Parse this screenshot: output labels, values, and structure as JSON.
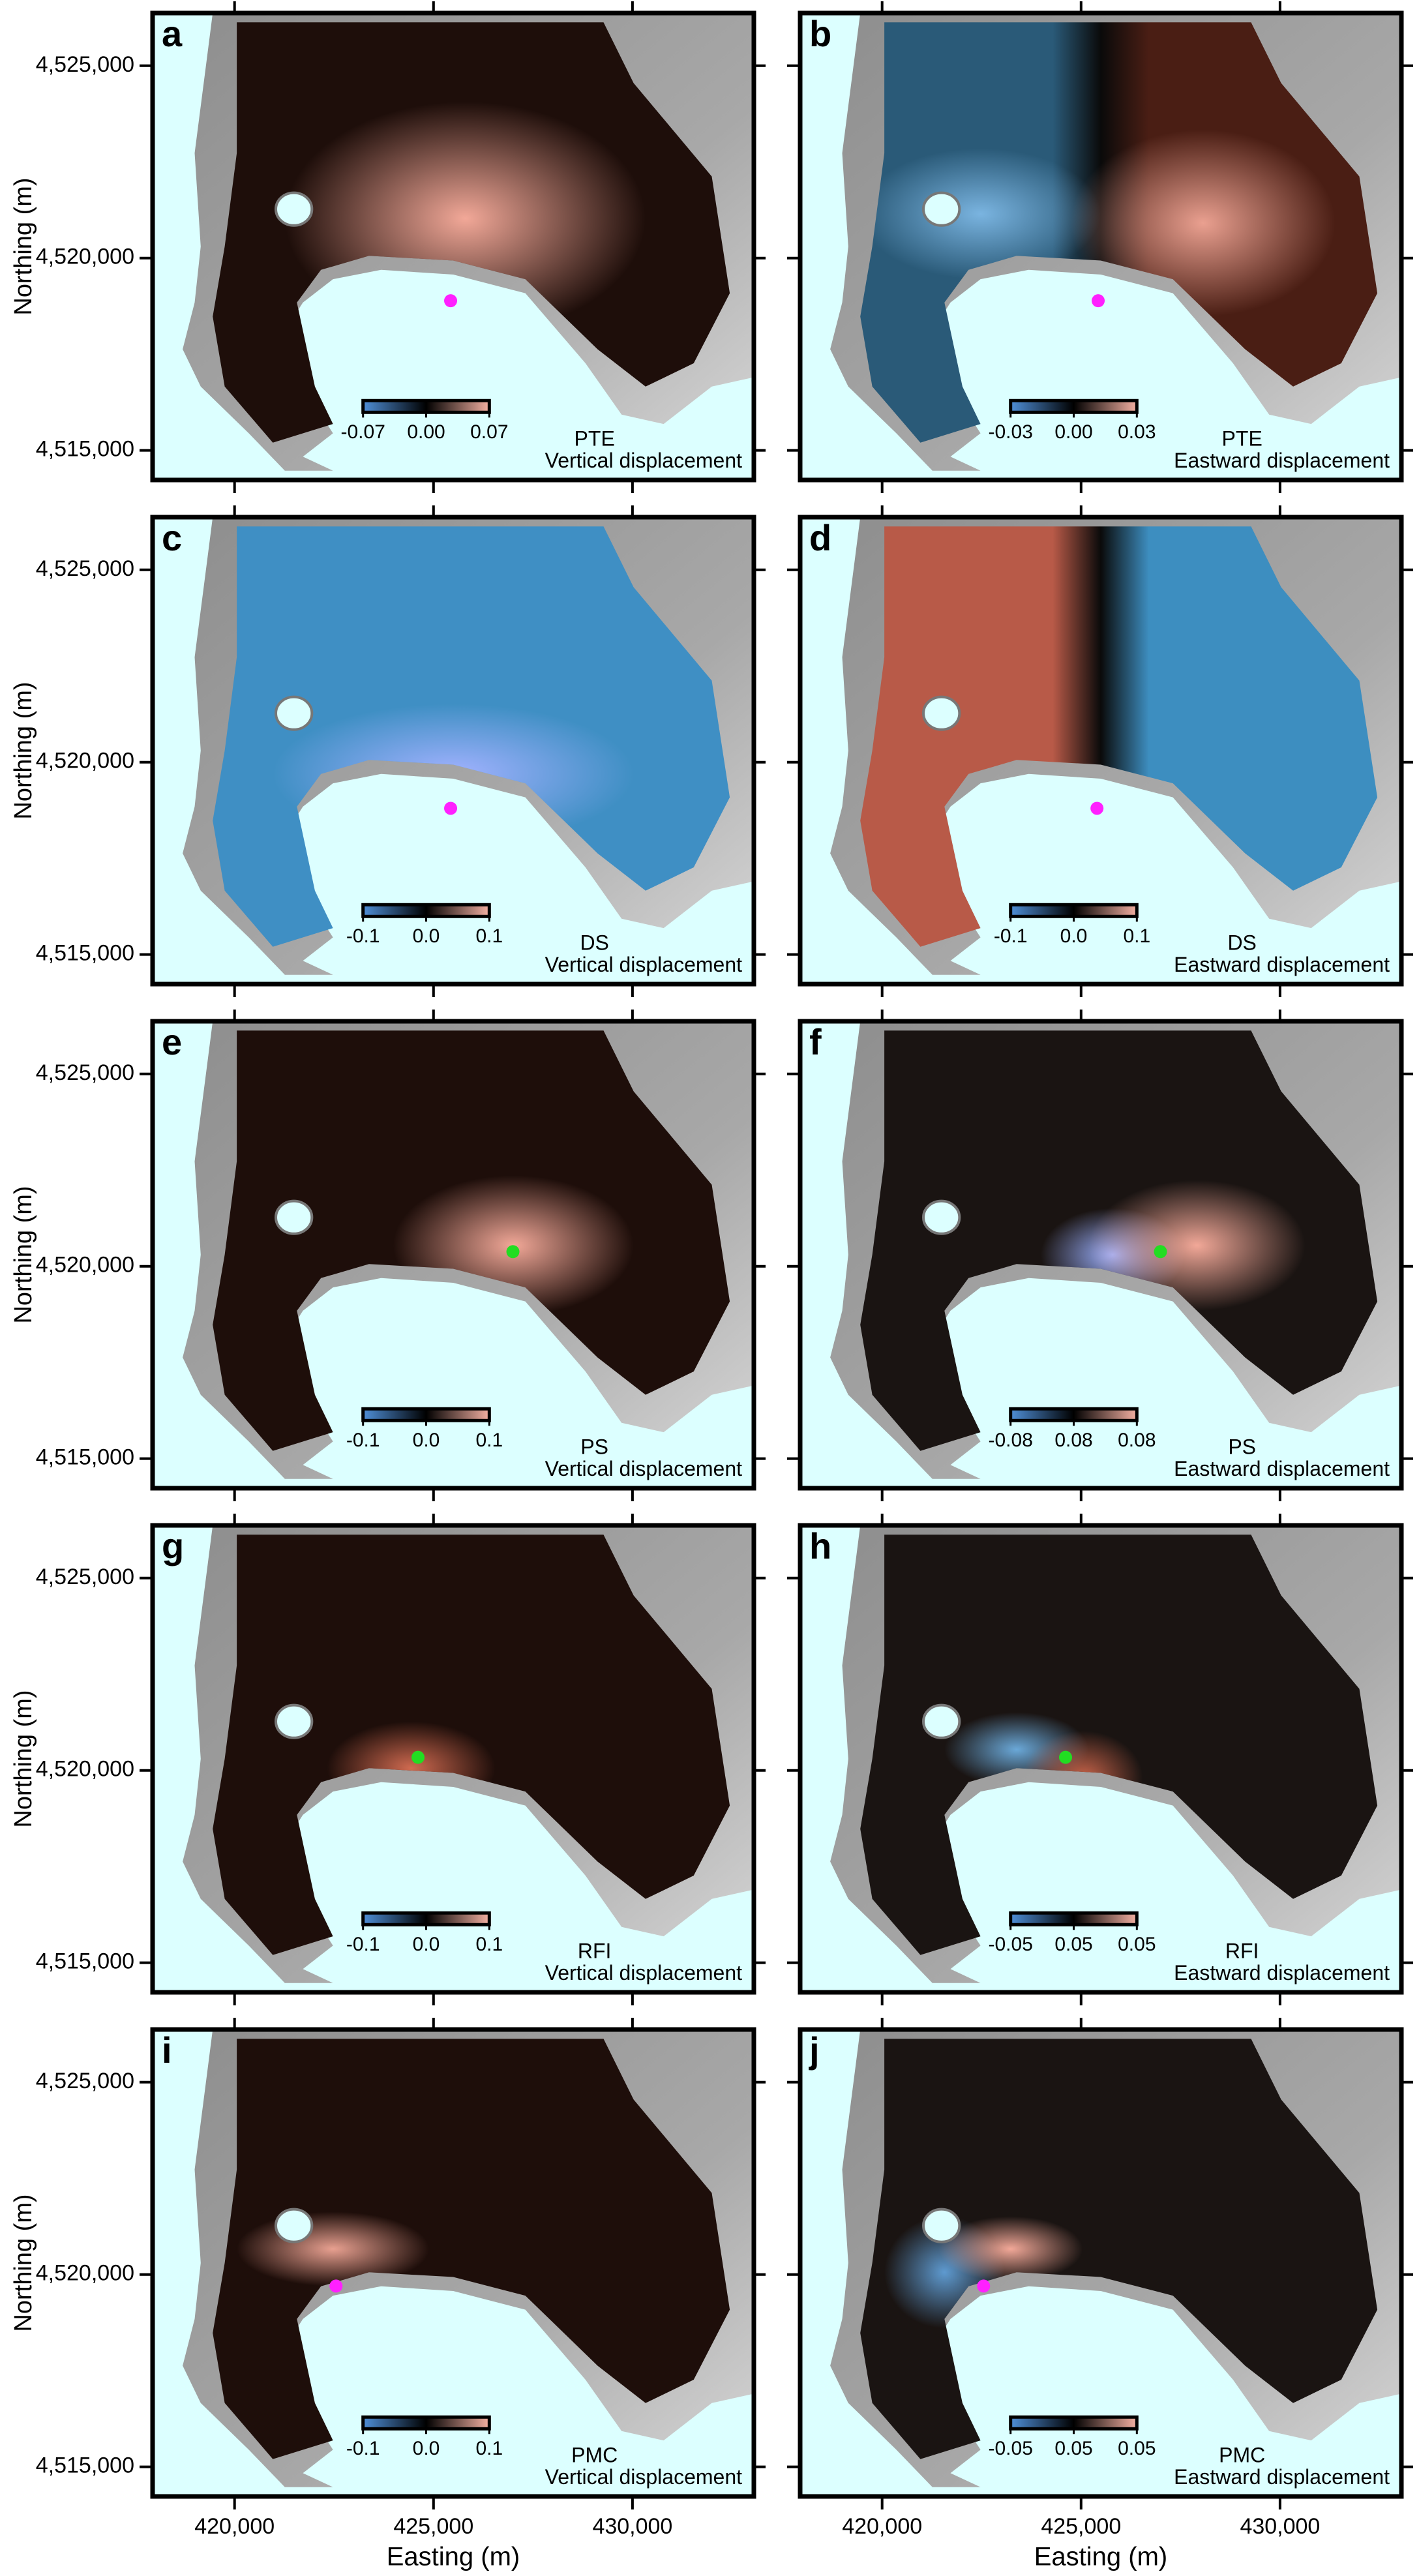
{
  "chart_data": [
    {
      "type": "map",
      "panel": "a",
      "model": "PTE",
      "component": "Vertical displacement",
      "ylabel": "Northing (m)",
      "xlim": [
        417940,
        433050
      ],
      "ylim": [
        4514230,
        4526370
      ],
      "xticks": [
        420000,
        425000,
        430000
      ],
      "yticks": [
        {
          "value": 4515000,
          "label": "4,515,000"
        },
        {
          "value": 4520000,
          "label": "4,520,000"
        },
        {
          "value": 4525000,
          "label": "4,525,000"
        }
      ],
      "colorbar_labels": [
        "-0.07",
        "0.00",
        "0.07"
      ],
      "colorbar_colors": [
        "#4f8fd8",
        "#000000",
        "#f4b0a2"
      ],
      "source": {
        "easting": 425430,
        "northing": 4518890,
        "color": "#ff20ff"
      }
    },
    {
      "type": "map",
      "panel": "b",
      "model": "PTE",
      "component": "Eastward displacement",
      "xlim": [
        417940,
        433050
      ],
      "ylim": [
        4514230,
        4526370
      ],
      "xticks": [
        420000,
        425000,
        430000
      ],
      "yticks": [
        4515000,
        4520000,
        4525000
      ],
      "colorbar_labels": [
        "-0.03",
        "0.00",
        "0.03"
      ],
      "colorbar_colors": [
        "#4f8fd8",
        "#000000",
        "#f4b0a2"
      ],
      "source": {
        "easting": 425430,
        "northing": 4518890,
        "color": "#ff20ff"
      }
    },
    {
      "type": "map",
      "panel": "c",
      "model": "DS",
      "component": "Vertical displacement",
      "ylabel": "Northing (m)",
      "xlim": [
        417940,
        433050
      ],
      "ylim": [
        4514230,
        4526370
      ],
      "xticks": [
        420000,
        425000,
        430000
      ],
      "yticks": [
        {
          "value": 4515000,
          "label": "4,515,000"
        },
        {
          "value": 4520000,
          "label": "4,520,000"
        },
        {
          "value": 4525000,
          "label": "4,525,000"
        }
      ],
      "colorbar_labels": [
        "-0.1",
        "0.0",
        "0.1"
      ],
      "colorbar_colors": [
        "#4f8fd8",
        "#000000",
        "#f4b0a2"
      ],
      "source": {
        "easting": 425430,
        "northing": 4518800,
        "color": "#ff20ff"
      }
    },
    {
      "type": "map",
      "panel": "d",
      "model": "DS",
      "component": "Eastward displacement",
      "xlim": [
        417940,
        433050
      ],
      "ylim": [
        4514230,
        4526370
      ],
      "xticks": [
        420000,
        425000,
        430000
      ],
      "yticks": [
        4515000,
        4520000,
        4525000
      ],
      "colorbar_labels": [
        "-0.1",
        "0.0",
        "0.1"
      ],
      "colorbar_colors": [
        "#4f8fd8",
        "#000000",
        "#f4b0a2"
      ],
      "source": {
        "easting": 425400,
        "northing": 4518800,
        "color": "#ff20ff"
      }
    },
    {
      "type": "map",
      "panel": "e",
      "model": "PS",
      "component": "Vertical displacement",
      "ylabel": "Northing (m)",
      "xlim": [
        417940,
        433050
      ],
      "ylim": [
        4514230,
        4526370
      ],
      "xticks": [
        420000,
        425000,
        430000
      ],
      "yticks": [
        {
          "value": 4515000,
          "label": "4,515,000"
        },
        {
          "value": 4520000,
          "label": "4,520,000"
        },
        {
          "value": 4525000,
          "label": "4,525,000"
        }
      ],
      "colorbar_labels": [
        "-0.1",
        "0.0",
        "0.1"
      ],
      "colorbar_colors": [
        "#4f8fd8",
        "#000000",
        "#f4b0a2"
      ],
      "source": {
        "easting": 426995,
        "northing": 4520380,
        "color": "#22dd22"
      }
    },
    {
      "type": "map",
      "panel": "f",
      "model": "PS",
      "component": "Eastward displacement",
      "xlim": [
        417940,
        433050
      ],
      "ylim": [
        4514230,
        4526370
      ],
      "xticks": [
        420000,
        425000,
        430000
      ],
      "yticks": [
        4515000,
        4520000,
        4525000
      ],
      "colorbar_labels": [
        "-0.08",
        "0.08",
        "0.08"
      ],
      "colorbar_colors": [
        "#4f8fd8",
        "#000000",
        "#f4b0a2"
      ],
      "source": {
        "easting": 426995,
        "northing": 4520380,
        "color": "#22dd22"
      }
    },
    {
      "type": "map",
      "panel": "g",
      "model": "RFI",
      "component": "Vertical displacement",
      "ylabel": "Northing (m)",
      "xlim": [
        417940,
        433050
      ],
      "ylim": [
        4514230,
        4526370
      ],
      "xticks": [
        420000,
        425000,
        430000
      ],
      "yticks": [
        {
          "value": 4515000,
          "label": "4,515,000"
        },
        {
          "value": 4520000,
          "label": "4,520,000"
        },
        {
          "value": 4525000,
          "label": "4,525,000"
        }
      ],
      "colorbar_labels": [
        "-0.1",
        "0.0",
        "0.1"
      ],
      "colorbar_colors": [
        "#4f8fd8",
        "#000000",
        "#f4b0a2"
      ],
      "source": {
        "easting": 424610,
        "northing": 4520340,
        "color": "#22dd22"
      }
    },
    {
      "type": "map",
      "panel": "h",
      "model": "RFI",
      "component": "Eastward displacement",
      "xlim": [
        417940,
        433050
      ],
      "ylim": [
        4514230,
        4526370
      ],
      "xticks": [
        420000,
        425000,
        430000
      ],
      "yticks": [
        4515000,
        4520000,
        4525000
      ],
      "colorbar_labels": [
        "-0.05",
        "0.05",
        "0.05"
      ],
      "colorbar_colors": [
        "#4f8fd8",
        "#000000",
        "#f4b0a2"
      ],
      "source": {
        "easting": 424610,
        "northing": 4520340,
        "color": "#22dd22"
      }
    },
    {
      "type": "map",
      "panel": "i",
      "model": "PMC",
      "component": "Vertical displacement",
      "ylabel": "Northing (m)",
      "xlabel": "Easting (m)",
      "xlim": [
        417940,
        433050
      ],
      "ylim": [
        4514230,
        4526370
      ],
      "xticks": [
        {
          "value": 420000,
          "label": "420,000"
        },
        {
          "value": 425000,
          "label": "425,000"
        },
        {
          "value": 430000,
          "label": "430,000"
        }
      ],
      "yticks": [
        {
          "value": 4515000,
          "label": "4,515,000"
        },
        {
          "value": 4520000,
          "label": "4,520,000"
        },
        {
          "value": 4525000,
          "label": "4,525,000"
        }
      ],
      "colorbar_labels": [
        "-0.1",
        "0.0",
        "0.1"
      ],
      "colorbar_colors": [
        "#4f8fd8",
        "#000000",
        "#f4b0a2"
      ],
      "source": {
        "easting": 422550,
        "northing": 4519700,
        "color": "#ff20ff"
      }
    },
    {
      "type": "map",
      "panel": "j",
      "model": "PMC",
      "component": "Eastward displacement",
      "xlabel": "Easting (m)",
      "xlim": [
        417940,
        433050
      ],
      "ylim": [
        4514230,
        4526370
      ],
      "xticks": [
        {
          "value": 420000,
          "label": "420,000"
        },
        {
          "value": 425000,
          "label": "425,000"
        },
        {
          "value": 430000,
          "label": "430,000"
        }
      ],
      "yticks": [
        4515000,
        4520000,
        4525000
      ],
      "colorbar_labels": [
        "-0.05",
        "0.05",
        "0.05"
      ],
      "colorbar_colors": [
        "#4f8fd8",
        "#000000",
        "#f4b0a2"
      ],
      "source": {
        "easting": 422550,
        "northing": 4519700,
        "color": "#ff20ff"
      }
    }
  ]
}
